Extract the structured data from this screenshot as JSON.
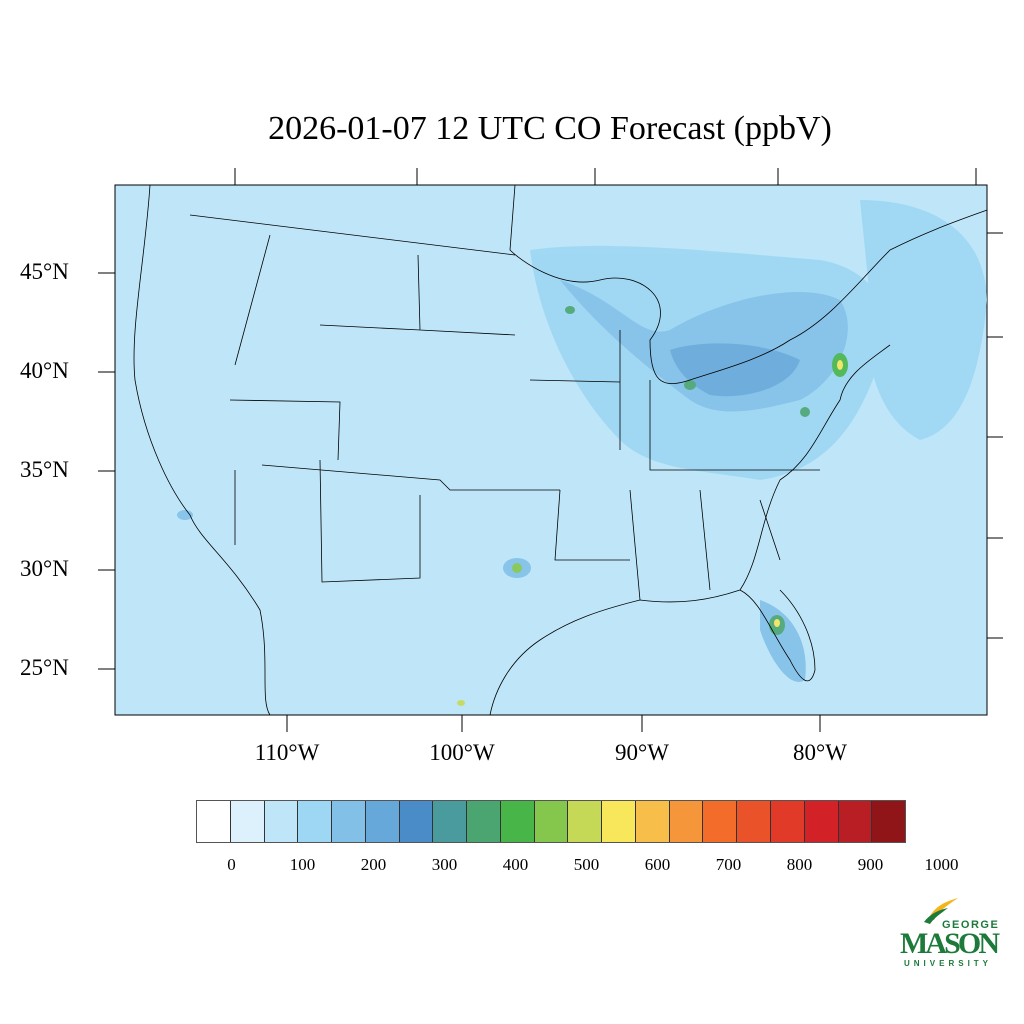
{
  "title": "2026-01-07 12 UTC CO Forecast (ppbV)",
  "lat_labels": [
    "45°N",
    "40°N",
    "35°N",
    "30°N",
    "25°N"
  ],
  "lon_labels": [
    "110°W",
    "100°W",
    "90°W",
    "80°W"
  ],
  "colorbar": {
    "colors": [
      "#ffffff",
      "#dcf1fb",
      "#bfe6f8",
      "#9dd7f4",
      "#83c0e8",
      "#67a8da",
      "#4a8cc8",
      "#4a9b9d",
      "#4aa570",
      "#48b549",
      "#85c64d",
      "#c5d957",
      "#f8e75b",
      "#f7be4a",
      "#f6963b",
      "#f36c2a",
      "#ea5229",
      "#e23a28",
      "#d32128",
      "#b81e24"
    ],
    "extra_color": "#8f1519",
    "labels": [
      "0",
      "100",
      "200",
      "300",
      "400",
      "500",
      "600",
      "700",
      "800",
      "900",
      "1000"
    ]
  },
  "logo": {
    "line1": "GEORGE",
    "line2": "MASON",
    "line3": "UNIVERSITY"
  }
}
